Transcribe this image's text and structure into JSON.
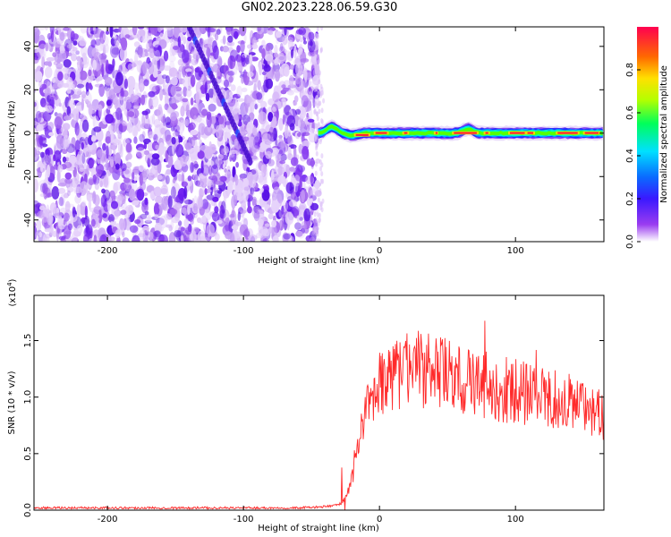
{
  "title": "GN02.2023.228.06.59.G30",
  "chart_data": [
    {
      "type": "heatmap",
      "xlabel": "Height of straight line (km)",
      "ylabel": "Frequency (Hz)",
      "xlim": [
        -254,
        165
      ],
      "ylim": [
        -50,
        49
      ],
      "xticks": [
        -200,
        -100,
        0,
        100
      ],
      "yticks": [
        -40,
        -20,
        0,
        20,
        40
      ],
      "noise_region_x": [
        -254,
        -45
      ],
      "signal_line": {
        "x_start": -45,
        "x_end": 165,
        "frequency": 0,
        "bumps": [
          [
            -35,
            3
          ],
          [
            65,
            2
          ],
          [
            -20,
            -1
          ],
          [
            30,
            0
          ]
        ]
      },
      "colorbar": {
        "label": "Normalized spectral amplitude",
        "range": [
          0.0,
          1.0
        ],
        "ticks": [
          "0.0",
          "0.2",
          "0.4",
          "0.6",
          "0.8"
        ]
      }
    },
    {
      "type": "line",
      "xlabel": "Height of straight line (km)",
      "ylabel": "SNR (10 * v/v)",
      "y_scale_label": "(x10",
      "y_scale_exp": "4",
      "xlim": [
        -254,
        165
      ],
      "ylim": [
        0,
        1.9
      ],
      "xticks": [
        -200,
        -100,
        0,
        100
      ],
      "yticks": [
        "0.0",
        "0.5",
        "1.0",
        "1.5"
      ],
      "color": "#ff2a2a",
      "series": [
        {
          "x": [
            -254,
            -200,
            -150,
            -100,
            -60,
            -40,
            -30,
            -25,
            -22,
            -18,
            -15,
            -12,
            -8,
            -5,
            -2,
            0,
            5,
            10,
            20,
            30,
            40,
            50,
            60,
            70,
            80,
            90,
            100,
            110,
            120,
            130,
            140,
            150,
            160,
            165
          ],
          "y": [
            0.02,
            0.02,
            0.02,
            0.02,
            0.02,
            0.03,
            0.05,
            0.1,
            0.2,
            0.4,
            0.6,
            0.75,
            0.9,
            1.0,
            1.05,
            1.1,
            1.15,
            1.2,
            1.25,
            1.25,
            1.22,
            1.2,
            1.15,
            1.12,
            1.1,
            1.07,
            1.05,
            1.02,
            1.0,
            0.98,
            0.95,
            0.9,
            0.85,
            0.82
          ]
        }
      ]
    }
  ]
}
